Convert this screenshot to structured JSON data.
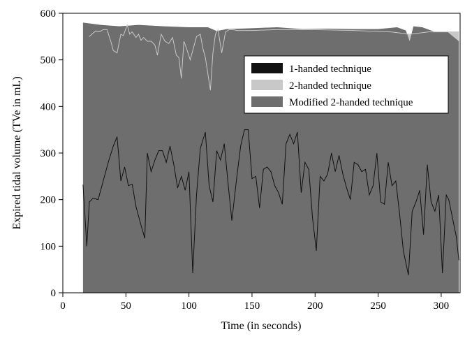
{
  "chart_data": {
    "type": "area",
    "title": "",
    "xlabel": "Time (in seconds)",
    "ylabel": "Expired tidal volume (TVe in mL)",
    "xlim": [
      0,
      315
    ],
    "ylim": [
      0,
      600
    ],
    "x_ticks": [
      0,
      50,
      100,
      150,
      200,
      250,
      300
    ],
    "y_ticks": [
      0,
      100,
      200,
      300,
      400,
      500,
      600
    ],
    "grid": false,
    "legend_position": "top-right",
    "colors": {
      "one_handed": "#111111",
      "two_handed": "#c8c8c8",
      "modified": "#6e6e6e"
    },
    "series": [
      {
        "name": "1-handed technique",
        "x": [
          16,
          19,
          21,
          24,
          28,
          32,
          36,
          40,
          43,
          46,
          49,
          52,
          55,
          58,
          62,
          65,
          67,
          70,
          73,
          76,
          79,
          82,
          85,
          88,
          91,
          94,
          97,
          100,
          103,
          106,
          109,
          113,
          116,
          119,
          122,
          125,
          128,
          131,
          134,
          138,
          141,
          144,
          147,
          150,
          153,
          156,
          159,
          162,
          165,
          168,
          171,
          174,
          177,
          180,
          183,
          186,
          189,
          192,
          195,
          198,
          201,
          204,
          207,
          210,
          213,
          216,
          219,
          222,
          225,
          228,
          231,
          234,
          237,
          240,
          243,
          246,
          249,
          252,
          255,
          258,
          261,
          264,
          267,
          270,
          274,
          277,
          280,
          283,
          286,
          289,
          292,
          295,
          298,
          301,
          304,
          306,
          309,
          312,
          314
        ],
        "values": [
          232,
          100,
          195,
          203,
          200,
          240,
          280,
          315,
          335,
          240,
          270,
          230,
          233,
          185,
          145,
          117,
          300,
          260,
          285,
          305,
          305,
          280,
          315,
          275,
          225,
          250,
          220,
          260,
          42,
          210,
          310,
          345,
          230,
          195,
          305,
          285,
          320,
          235,
          155,
          250,
          315,
          350,
          350,
          245,
          250,
          182,
          265,
          270,
          260,
          230,
          215,
          190,
          320,
          340,
          320,
          345,
          215,
          280,
          265,
          160,
          90,
          250,
          240,
          255,
          300,
          260,
          295,
          255,
          225,
          200,
          280,
          275,
          260,
          265,
          210,
          230,
          300,
          195,
          190,
          280,
          230,
          240,
          170,
          90,
          38,
          175,
          195,
          220,
          125,
          275,
          195,
          175,
          210,
          42,
          210,
          200,
          160,
          120,
          70
        ]
      },
      {
        "name": "2-handed technique",
        "x": [
          21,
          23,
          26,
          29,
          32,
          35,
          38,
          40,
          43,
          46,
          48,
          51,
          53,
          55,
          58,
          60,
          62,
          64,
          67,
          70,
          73,
          75,
          78,
          81,
          84,
          87,
          90,
          92,
          94,
          96,
          98,
          101,
          103,
          106,
          109,
          111,
          113,
          115,
          117,
          119,
          121,
          123,
          126,
          129,
          132,
          135,
          138,
          150,
          170,
          200,
          230,
          260,
          275,
          290,
          314
        ],
        "values": [
          550,
          555,
          562,
          560,
          565,
          565,
          540,
          520,
          515,
          555,
          552,
          575,
          555,
          560,
          548,
          555,
          542,
          548,
          540,
          540,
          532,
          510,
          555,
          540,
          535,
          548,
          510,
          505,
          460,
          540,
          525,
          500,
          520,
          550,
          555,
          525,
          505,
          470,
          435,
          515,
          555,
          565,
          515,
          560,
          565,
          565,
          563,
          563,
          565,
          565,
          563,
          560,
          555,
          560,
          560
        ]
      },
      {
        "name": "Modified 2-handed technique",
        "x": [
          16,
          30,
          45,
          60,
          80,
          100,
          115,
          122,
          130,
          150,
          170,
          190,
          210,
          230,
          250,
          265,
          272,
          275,
          278,
          285,
          295,
          305,
          314
        ],
        "values": [
          580,
          575,
          572,
          575,
          572,
          570,
          570,
          562,
          566,
          568,
          570,
          566,
          567,
          566,
          566,
          570,
          563,
          540,
          572,
          570,
          560,
          560,
          540
        ]
      }
    ]
  }
}
